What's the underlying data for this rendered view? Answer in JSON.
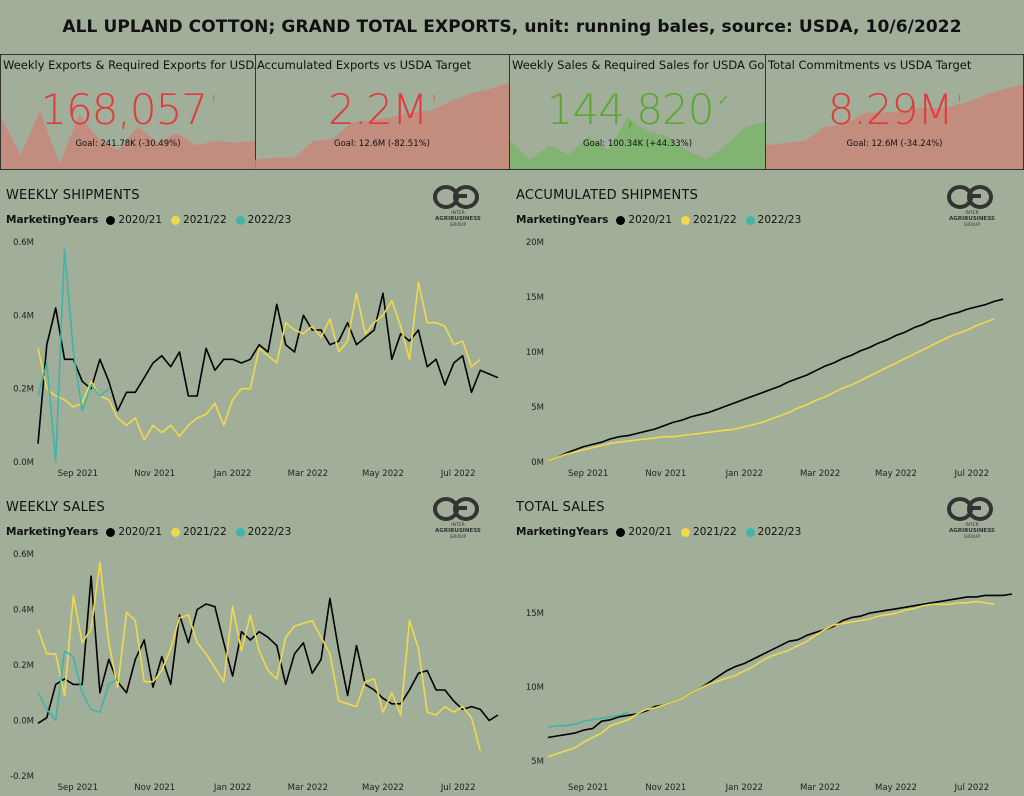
{
  "title": "ALL UPLAND COTTON; GRAND TOTAL EXPORTS, unit: running bales, source: USDA, 10/6/2022",
  "colors": {
    "bad": "#e03b3b",
    "good": "#5aa832",
    "bad_fill": "#c8877a",
    "good_fill": "#7bb46a",
    "s2020": "#000000",
    "s2021": "#f0d94a",
    "s2022": "#3fb5a8"
  },
  "kpis": [
    {
      "title": "Weekly Exports & Required Exports for USDA Goal",
      "value": "168,057",
      "flag": "!",
      "goal": "Goal: 241.78K (-30.49%)",
      "status": "bad",
      "trend": [
        0.55,
        0.15,
        0.62,
        0.05,
        0.58,
        0.32,
        0.2,
        0.45,
        0.28,
        0.38,
        0.25,
        0.3,
        0.28,
        0.3
      ]
    },
    {
      "title": "Accumulated Exports vs USDA Target",
      "value": "2.2M",
      "flag": "!",
      "goal": "Goal: 12.6M (-82.51%)",
      "status": "bad",
      "trend": [
        0.1,
        0.12,
        0.12,
        0.3,
        0.32,
        0.5,
        0.52,
        0.55,
        0.6,
        0.62,
        0.72,
        0.8,
        0.85,
        0.92
      ]
    },
    {
      "title": "Weekly Sales & Required Sales for USDA Goal",
      "value": "144,820",
      "flag": "✓",
      "goal": "Goal: 100.34K (+44.33%)",
      "status": "good",
      "trend": [
        0.3,
        0.1,
        0.25,
        0.15,
        0.35,
        0.2,
        0.55,
        0.4,
        0.35,
        0.2,
        0.1,
        0.25,
        0.45,
        0.5
      ]
    },
    {
      "title": "Total Commitments vs USDA Target",
      "value": "8.29M",
      "flag": "!",
      "goal": "Goal: 12.6M (-34.24%)",
      "status": "bad",
      "trend": [
        0.25,
        0.28,
        0.3,
        0.45,
        0.48,
        0.6,
        0.6,
        0.62,
        0.65,
        0.65,
        0.7,
        0.78,
        0.85,
        0.9
      ]
    }
  ],
  "legend": {
    "label": "MarketingYears",
    "items": [
      "2020/21",
      "2021/22",
      "2022/23"
    ]
  },
  "logo": {
    "line1": "INTER",
    "line2": "AGRIBUSINESS",
    "line3": "GROUP"
  },
  "chart_data": [
    {
      "id": "weekly-shipments",
      "type": "line",
      "title": "WEEKLY SHIPMENTS",
      "x_ticks": [
        "Sep 2021",
        "Nov 2021",
        "Jan 2022",
        "Mar 2022",
        "May 2022",
        "Jul 2022"
      ],
      "x_range": [
        0,
        52
      ],
      "x_tick_pos": [
        4.5,
        13.2,
        22,
        30.5,
        39,
        47.5
      ],
      "ylim": [
        0,
        0.6
      ],
      "y_ticks": [
        0,
        0.2,
        0.4,
        0.6
      ],
      "y_tick_labels": [
        "0.0M",
        "0.2M",
        "0.4M",
        "0.6M"
      ],
      "series": [
        {
          "name": "2020/21",
          "color": "#000000",
          "x_start": 0,
          "values": [
            0.05,
            0.32,
            0.42,
            0.28,
            0.28,
            0.22,
            0.2,
            0.28,
            0.22,
            0.14,
            0.19,
            0.19,
            0.23,
            0.27,
            0.29,
            0.26,
            0.3,
            0.18,
            0.18,
            0.31,
            0.25,
            0.28,
            0.28,
            0.27,
            0.28,
            0.32,
            0.3,
            0.43,
            0.32,
            0.3,
            0.4,
            0.36,
            0.36,
            0.32,
            0.33,
            0.38,
            0.32,
            0.34,
            0.36,
            0.46,
            0.28,
            0.35,
            0.33,
            0.36,
            0.26,
            0.28,
            0.21,
            0.27,
            0.29,
            0.19,
            0.25,
            0.24,
            0.23
          ]
        },
        {
          "name": "2021/22",
          "color": "#f0d94a",
          "x_start": 0,
          "values": [
            0.31,
            0.2,
            0.18,
            0.17,
            0.15,
            0.16,
            0.22,
            0.18,
            0.17,
            0.12,
            0.1,
            0.12,
            0.06,
            0.1,
            0.08,
            0.1,
            0.07,
            0.1,
            0.12,
            0.13,
            0.16,
            0.1,
            0.17,
            0.2,
            0.2,
            0.31,
            0.29,
            0.27,
            0.38,
            0.36,
            0.35,
            0.37,
            0.34,
            0.39,
            0.3,
            0.33,
            0.46,
            0.35,
            0.38,
            0.4,
            0.44,
            0.37,
            0.28,
            0.49,
            0.38,
            0.38,
            0.37,
            0.32,
            0.33,
            0.26,
            0.28
          ]
        },
        {
          "name": "2022/23",
          "color": "#3fb5a8",
          "x_start": 0,
          "values": [
            0.18,
            0.27,
            0.0,
            0.58,
            0.3,
            0.14,
            0.21,
            0.18,
            0.2
          ]
        }
      ]
    },
    {
      "id": "accumulated-shipments",
      "type": "line",
      "title": "ACCUMULATED SHIPMENTS",
      "x_ticks": [
        "Sep 2021",
        "Nov 2021",
        "Jan 2022",
        "Mar 2022",
        "May 2022",
        "Jul 2022"
      ],
      "x_range": [
        0,
        52
      ],
      "x_tick_pos": [
        4.5,
        13.2,
        22,
        30.5,
        39,
        47.5
      ],
      "ylim": [
        0,
        20
      ],
      "y_ticks": [
        0,
        5,
        10,
        15,
        20
      ],
      "y_tick_labels": [
        "0M",
        "5M",
        "10M",
        "15M",
        "20M"
      ],
      "series": [
        {
          "name": "2020/21",
          "color": "#000000",
          "x_start": 0,
          "values": [
            0.1,
            0.4,
            0.8,
            1.1,
            1.4,
            1.6,
            1.8,
            2.1,
            2.3,
            2.4,
            2.6,
            2.8,
            3.0,
            3.3,
            3.6,
            3.8,
            4.1,
            4.3,
            4.5,
            4.8,
            5.1,
            5.4,
            5.7,
            6.0,
            6.3,
            6.6,
            6.9,
            7.3,
            7.6,
            7.9,
            8.3,
            8.7,
            9.0,
            9.4,
            9.7,
            10.1,
            10.4,
            10.8,
            11.1,
            11.5,
            11.8,
            12.2,
            12.5,
            12.9,
            13.1,
            13.4,
            13.6,
            13.9,
            14.1,
            14.3,
            14.6,
            14.8
          ]
        },
        {
          "name": "2021/22",
          "color": "#f0d94a",
          "x_start": 0,
          "values": [
            0.1,
            0.4,
            0.7,
            0.9,
            1.1,
            1.3,
            1.5,
            1.7,
            1.8,
            1.9,
            2.0,
            2.1,
            2.2,
            2.3,
            2.3,
            2.4,
            2.5,
            2.6,
            2.7,
            2.8,
            2.9,
            3.0,
            3.2,
            3.4,
            3.6,
            3.9,
            4.2,
            4.5,
            4.9,
            5.2,
            5.6,
            5.9,
            6.3,
            6.7,
            7.0,
            7.4,
            7.8,
            8.2,
            8.6,
            9.0,
            9.4,
            9.8,
            10.2,
            10.6,
            11.0,
            11.4,
            11.7,
            12.0,
            12.4,
            12.7,
            13.0
          ]
        }
      ]
    },
    {
      "id": "weekly-sales",
      "type": "line",
      "title": "WEEKLY SALES",
      "x_ticks": [
        "Sep 2021",
        "Nov 2021",
        "Jan 2022",
        "Mar 2022",
        "May 2022",
        "Jul 2022"
      ],
      "x_range": [
        0,
        52
      ],
      "x_tick_pos": [
        4.5,
        13.2,
        22,
        30.5,
        39,
        47.5
      ],
      "ylim": [
        -0.2,
        0.6
      ],
      "y_ticks": [
        -0.2,
        0,
        0.2,
        0.4,
        0.6
      ],
      "y_tick_labels": [
        "-0.2M",
        "0.0M",
        "0.2M",
        "0.4M",
        "0.6M"
      ],
      "series": [
        {
          "name": "2020/21",
          "color": "#000000",
          "x_start": 0,
          "values": [
            -0.01,
            0.01,
            0.13,
            0.15,
            0.13,
            0.13,
            0.52,
            0.1,
            0.22,
            0.14,
            0.1,
            0.22,
            0.29,
            0.12,
            0.23,
            0.13,
            0.38,
            0.28,
            0.4,
            0.42,
            0.41,
            0.28,
            0.16,
            0.32,
            0.29,
            0.32,
            0.3,
            0.27,
            0.13,
            0.24,
            0.28,
            0.17,
            0.22,
            0.44,
            0.25,
            0.09,
            0.27,
            0.13,
            0.11,
            0.08,
            0.06,
            0.06,
            0.11,
            0.17,
            0.18,
            0.11,
            0.11,
            0.07,
            0.04,
            0.05,
            0.04,
            0.0,
            0.02
          ]
        },
        {
          "name": "2021/22",
          "color": "#f0d94a",
          "x_start": 0,
          "values": [
            0.33,
            0.24,
            0.24,
            0.09,
            0.45,
            0.28,
            0.33,
            0.57,
            0.28,
            0.12,
            0.39,
            0.36,
            0.14,
            0.14,
            0.18,
            0.26,
            0.37,
            0.38,
            0.28,
            0.24,
            0.19,
            0.14,
            0.41,
            0.25,
            0.38,
            0.25,
            0.18,
            0.15,
            0.3,
            0.34,
            0.35,
            0.36,
            0.3,
            0.24,
            0.07,
            0.06,
            0.05,
            0.14,
            0.15,
            0.03,
            0.1,
            0.02,
            0.36,
            0.26,
            0.03,
            0.02,
            0.05,
            0.03,
            0.05,
            0.01,
            -0.11
          ]
        },
        {
          "name": "2022/23",
          "color": "#3fb5a8",
          "x_start": 0,
          "values": [
            0.1,
            0.04,
            0.0,
            0.25,
            0.23,
            0.1,
            0.04,
            0.03,
            0.13,
            0.15
          ]
        }
      ]
    },
    {
      "id": "total-sales",
      "type": "line",
      "title": "TOTAL SALES",
      "x_ticks": [
        "Sep 2021",
        "Nov 2021",
        "Jan 2022",
        "Mar 2022",
        "May 2022",
        "Jul 2022"
      ],
      "x_range": [
        0,
        52
      ],
      "x_tick_pos": [
        4.5,
        13.2,
        22,
        30.5,
        39,
        47.5
      ],
      "ylim": [
        4,
        19
      ],
      "y_ticks": [
        5,
        10,
        15
      ],
      "y_tick_labels": [
        "5M",
        "10M",
        "15M"
      ],
      "series": [
        {
          "name": "2020/21",
          "color": "#000000",
          "x_start": 0,
          "values": [
            6.6,
            6.7,
            6.8,
            6.9,
            7.1,
            7.2,
            7.7,
            7.8,
            8.0,
            8.1,
            8.2,
            8.4,
            8.7,
            8.8,
            9.0,
            9.2,
            9.6,
            9.9,
            10.3,
            10.7,
            11.1,
            11.4,
            11.6,
            11.9,
            12.2,
            12.5,
            12.8,
            13.1,
            13.2,
            13.5,
            13.7,
            13.9,
            14.1,
            14.5,
            14.7,
            14.8,
            15.0,
            15.1,
            15.2,
            15.3,
            15.4,
            15.5,
            15.6,
            15.7,
            15.8,
            15.9,
            16.0,
            16.1,
            16.1,
            16.2,
            16.2,
            16.2,
            16.3
          ]
        },
        {
          "name": "2021/22",
          "color": "#f0d94a",
          "x_start": 0,
          "values": [
            5.3,
            5.5,
            5.7,
            5.9,
            6.3,
            6.6,
            6.9,
            7.4,
            7.6,
            7.8,
            8.2,
            8.5,
            8.6,
            8.8,
            9.0,
            9.2,
            9.6,
            9.9,
            10.2,
            10.4,
            10.6,
            10.8,
            11.1,
            11.4,
            11.8,
            12.1,
            12.3,
            12.5,
            12.8,
            13.1,
            13.5,
            13.9,
            14.2,
            14.3,
            14.4,
            14.5,
            14.6,
            14.8,
            14.9,
            15.0,
            15.2,
            15.3,
            15.5,
            15.6,
            15.6,
            15.6,
            15.7,
            15.7,
            15.8,
            15.7,
            15.6
          ]
        },
        {
          "name": "2022/23",
          "color": "#3fb5a8",
          "x_start": 0,
          "values": [
            7.3,
            7.4,
            7.4,
            7.5,
            7.7,
            7.8,
            7.9,
            8.0,
            8.1,
            8.3
          ]
        }
      ]
    }
  ]
}
